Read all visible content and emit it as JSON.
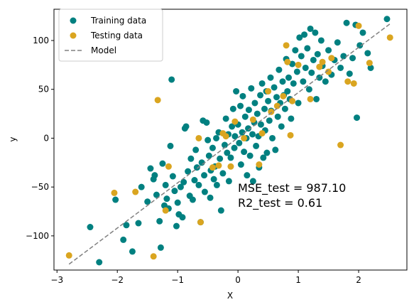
{
  "chart_data": {
    "type": "scatter",
    "xlabel": "X",
    "ylabel": "y",
    "xlim": [
      -3.05,
      2.8
    ],
    "ylim": [
      -135,
      132
    ],
    "xticks": [
      -3,
      -2,
      -1,
      0,
      1,
      2
    ],
    "yticks": [
      -100,
      -50,
      0,
      50,
      100
    ],
    "grid": false,
    "legend_position": "top-left",
    "colors": {
      "training": "#008080",
      "testing": "#DAA520",
      "model": "#808080"
    },
    "series": [
      {
        "name": "Training data",
        "kind": "points",
        "points": [
          [
            -2.45,
            -91
          ],
          [
            -2.3,
            -127
          ],
          [
            -2.03,
            -63
          ],
          [
            -1.9,
            -104
          ],
          [
            -1.85,
            -89
          ],
          [
            -1.75,
            -116
          ],
          [
            -1.65,
            -87
          ],
          [
            -1.6,
            -50
          ],
          [
            -1.5,
            -65
          ],
          [
            -1.45,
            -31
          ],
          [
            -1.4,
            -42
          ],
          [
            -1.38,
            -38
          ],
          [
            -1.35,
            -58
          ],
          [
            -1.3,
            -85
          ],
          [
            -1.28,
            -112
          ],
          [
            -1.25,
            -26
          ],
          [
            -1.22,
            -69
          ],
          [
            -1.2,
            -48
          ],
          [
            -1.18,
            -62
          ],
          [
            -1.15,
            -72
          ],
          [
            -1.12,
            -8
          ],
          [
            -1.1,
            60
          ],
          [
            -1.08,
            -39
          ],
          [
            -1.05,
            -54
          ],
          [
            -1.02,
            -90
          ],
          [
            -1.0,
            -66
          ],
          [
            -0.98,
            -78
          ],
          [
            -0.95,
            -50
          ],
          [
            -0.92,
            -81
          ],
          [
            -0.9,
            -45
          ],
          [
            -0.88,
            10
          ],
          [
            -0.86,
            12
          ],
          [
            -0.83,
            -34
          ],
          [
            -0.8,
            -59
          ],
          [
            -0.78,
            -21
          ],
          [
            -0.75,
            -63
          ],
          [
            -0.72,
            -43
          ],
          [
            -0.7,
            -12
          ],
          [
            -0.68,
            -30
          ],
          [
            -0.65,
            -48
          ],
          [
            -0.62,
            -86
          ],
          [
            -0.6,
            -25
          ],
          [
            -0.58,
            18
          ],
          [
            -0.56,
            -38
          ],
          [
            -0.55,
            -55
          ],
          [
            -0.52,
            16
          ],
          [
            -0.5,
            -2
          ],
          [
            -0.48,
            -18
          ],
          [
            -0.46,
            -61
          ],
          [
            -0.45,
            -33
          ],
          [
            -0.42,
            -10
          ],
          [
            -0.4,
            -42
          ],
          [
            -0.38,
            -29
          ],
          [
            -0.36,
            0
          ],
          [
            -0.35,
            -48
          ],
          [
            -0.32,
            6
          ],
          [
            -0.3,
            -21
          ],
          [
            -0.28,
            -74
          ],
          [
            -0.25,
            -36
          ],
          [
            -0.22,
            -7
          ],
          [
            -0.2,
            20
          ],
          [
            -0.18,
            -15
          ],
          [
            -0.16,
            4
          ],
          [
            -0.15,
            -44
          ],
          [
            -0.12,
            -20
          ],
          [
            -0.1,
            12
          ],
          [
            -0.08,
            30
          ],
          [
            -0.06,
            -10
          ],
          [
            -0.05,
            2
          ],
          [
            -0.03,
            48
          ],
          [
            0.0,
            14
          ],
          [
            0.02,
            -5
          ],
          [
            0.04,
            33
          ],
          [
            0.05,
            -27
          ],
          [
            0.07,
            6
          ],
          [
            0.08,
            43
          ],
          [
            0.1,
            -14
          ],
          [
            0.12,
            22
          ],
          [
            0.14,
            0
          ],
          [
            0.15,
            -38
          ],
          [
            0.17,
            10
          ],
          [
            0.18,
            29
          ],
          [
            0.2,
            -18
          ],
          [
            0.22,
            51
          ],
          [
            0.24,
            4
          ],
          [
            0.25,
            -44
          ],
          [
            0.27,
            16
          ],
          [
            0.28,
            36
          ],
          [
            0.3,
            -8
          ],
          [
            0.32,
            25
          ],
          [
            0.34,
            2
          ],
          [
            0.35,
            -30
          ],
          [
            0.37,
            44
          ],
          [
            0.38,
            14
          ],
          [
            0.4,
            56
          ],
          [
            0.42,
            -20
          ],
          [
            0.44,
            30
          ],
          [
            0.45,
            8
          ],
          [
            0.47,
            48
          ],
          [
            0.48,
            -15
          ],
          [
            0.5,
            38
          ],
          [
            0.52,
            18
          ],
          [
            0.54,
            62
          ],
          [
            0.55,
            28
          ],
          [
            0.57,
            0
          ],
          [
            0.6,
            52
          ],
          [
            0.62,
            -12
          ],
          [
            0.64,
            42
          ],
          [
            0.66,
            22
          ],
          [
            0.68,
            70
          ],
          [
            0.7,
            36
          ],
          [
            0.72,
            12
          ],
          [
            0.74,
            58
          ],
          [
            0.76,
            44
          ],
          [
            0.78,
            30
          ],
          [
            0.8,
            81
          ],
          [
            0.82,
            48
          ],
          [
            0.84,
            62
          ],
          [
            0.86,
            40
          ],
          [
            0.88,
            20
          ],
          [
            0.9,
            76
          ],
          [
            0.92,
            56
          ],
          [
            0.95,
            90
          ],
          [
            0.98,
            68
          ],
          [
            1.0,
            36
          ],
          [
            1.02,
            103
          ],
          [
            1.05,
            84
          ],
          [
            1.08,
            58
          ],
          [
            1.1,
            106
          ],
          [
            1.12,
            72
          ],
          [
            1.15,
            92
          ],
          [
            1.18,
            50
          ],
          [
            1.2,
            112
          ],
          [
            1.22,
            67
          ],
          [
            1.25,
            80
          ],
          [
            1.28,
            108
          ],
          [
            1.3,
            40
          ],
          [
            1.32,
            86
          ],
          [
            1.35,
            62
          ],
          [
            1.38,
            100
          ],
          [
            1.4,
            74
          ],
          [
            1.45,
            58
          ],
          [
            1.5,
            90
          ],
          [
            1.55,
            65
          ],
          [
            1.6,
            80
          ],
          [
            1.65,
            98
          ],
          [
            1.7,
            72
          ],
          [
            1.75,
            84
          ],
          [
            1.8,
            118
          ],
          [
            1.85,
            66
          ],
          [
            1.9,
            82
          ],
          [
            1.95,
            116
          ],
          [
            1.97,
            21
          ],
          [
            2.02,
            95
          ],
          [
            2.07,
            108
          ],
          [
            2.15,
            87
          ],
          [
            2.2,
            72
          ],
          [
            2.47,
            122
          ]
        ]
      },
      {
        "name": "Testing data",
        "kind": "points",
        "points": [
          [
            -2.8,
            -120
          ],
          [
            -2.05,
            -56
          ],
          [
            -1.7,
            -55
          ],
          [
            -1.4,
            -121
          ],
          [
            -1.33,
            39
          ],
          [
            -1.2,
            -74
          ],
          [
            -1.15,
            -29
          ],
          [
            -0.65,
            0
          ],
          [
            -0.62,
            -86
          ],
          [
            -0.42,
            -30
          ],
          [
            -0.32,
            -28
          ],
          [
            -0.25,
            5
          ],
          [
            -0.2,
            2
          ],
          [
            -0.12,
            -29
          ],
          [
            -0.05,
            17
          ],
          [
            0.1,
            0
          ],
          [
            0.25,
            19
          ],
          [
            0.35,
            -27
          ],
          [
            0.4,
            5
          ],
          [
            0.5,
            48
          ],
          [
            0.55,
            27
          ],
          [
            0.65,
            33
          ],
          [
            0.75,
            43
          ],
          [
            0.8,
            95
          ],
          [
            0.82,
            78
          ],
          [
            0.87,
            3
          ],
          [
            0.9,
            38
          ],
          [
            1.0,
            75
          ],
          [
            1.2,
            40
          ],
          [
            1.35,
            73
          ],
          [
            1.4,
            78
          ],
          [
            1.5,
            68
          ],
          [
            1.55,
            82
          ],
          [
            1.7,
            -7
          ],
          [
            1.82,
            58
          ],
          [
            1.92,
            56
          ],
          [
            2.0,
            115
          ],
          [
            2.18,
            77
          ],
          [
            2.52,
            103
          ]
        ]
      },
      {
        "name": "Model",
        "kind": "line",
        "points": [
          [
            -2.8,
            -129
          ],
          [
            2.52,
            117
          ]
        ]
      }
    ],
    "annotations": [
      "MSE_test = 987.10",
      "R2_test = 0.61"
    ]
  }
}
